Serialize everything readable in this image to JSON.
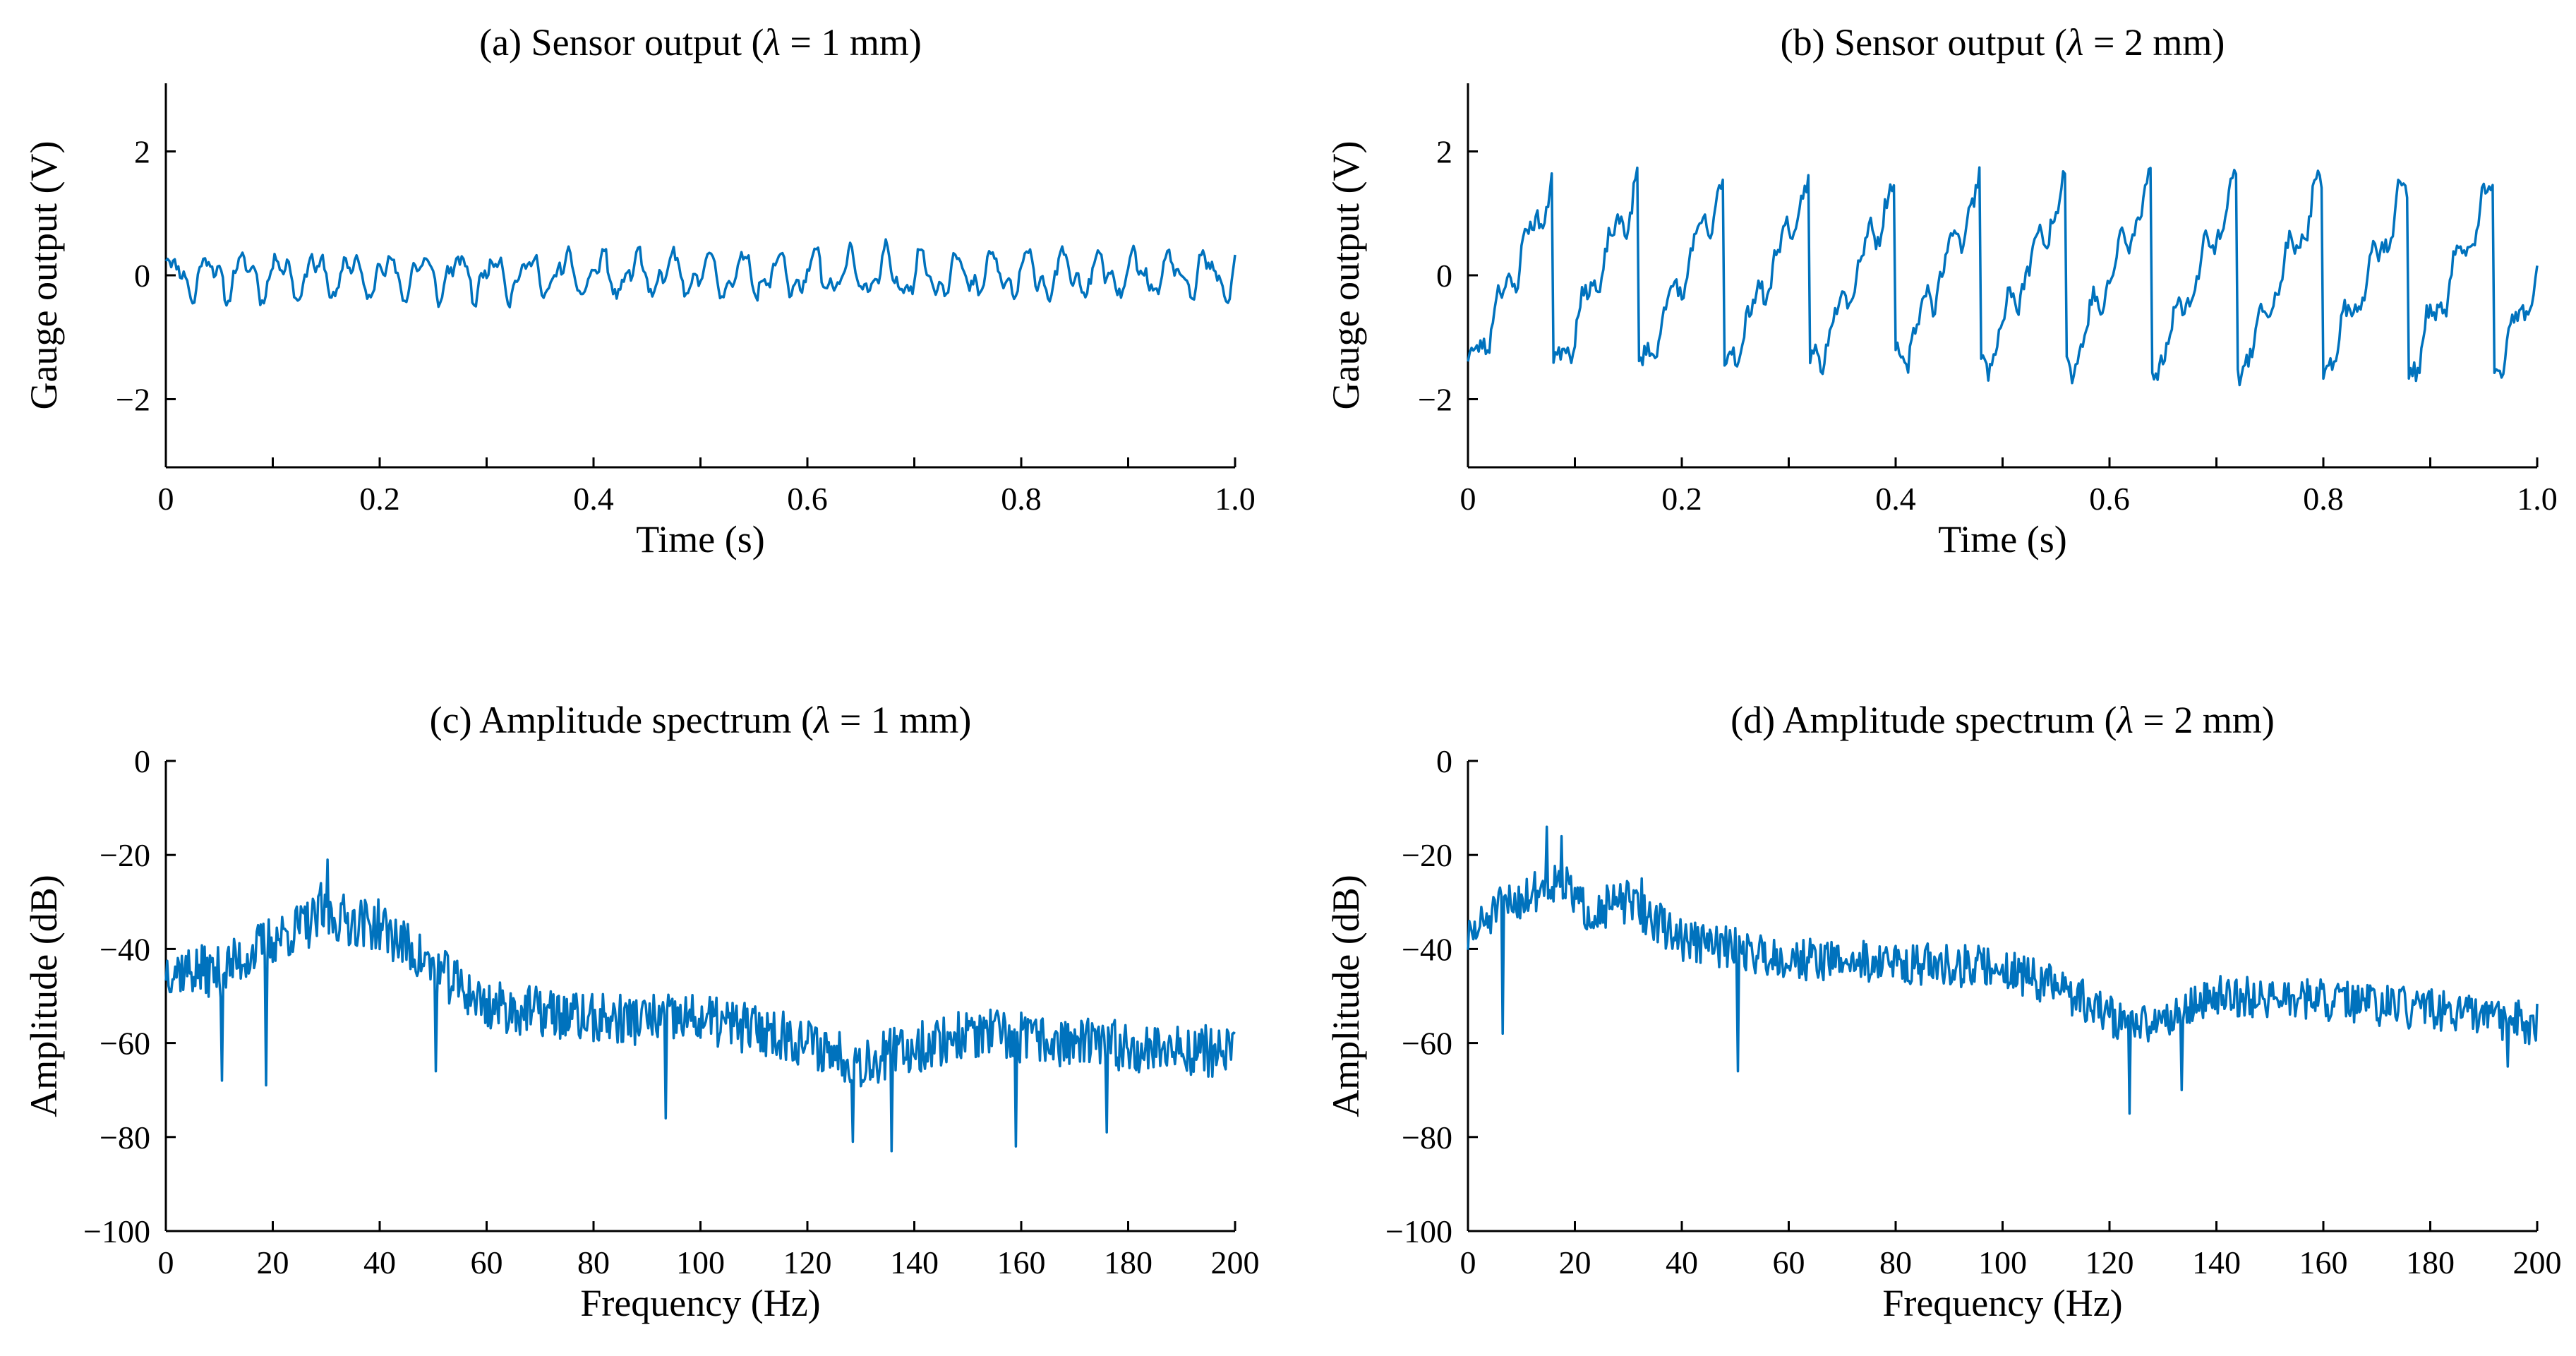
{
  "chart_data": [
    {
      "id": "a",
      "type": "line",
      "title_prefix": "(a) Sensor output (",
      "title_symbol": "λ",
      "title_suffix": " = 1 mm)",
      "xlabel": "Time (s)",
      "ylabel": "Gauge output (V)",
      "xlim": [
        0,
        1.0
      ],
      "ylim": [
        -3.1,
        3.1
      ],
      "xticks": [
        0,
        0.1,
        0.2,
        0.3,
        0.4,
        0.5,
        0.6,
        0.7,
        0.8,
        0.9,
        1.0
      ],
      "xtick_labels": [
        "0",
        "",
        "0.2",
        "",
        "0.4",
        "",
        "0.6",
        "",
        "0.8",
        "",
        "1.0"
      ],
      "yticks": [
        -2,
        0,
        2
      ],
      "ytick_labels": [
        "−2",
        "0",
        "2"
      ],
      "color": "#0072BD",
      "signal": {
        "kind": "time",
        "points": 600,
        "components": [
          {
            "amp": 0.28,
            "freq": 30,
            "phase": 0.3,
            "shape": "sine"
          },
          {
            "amp": 0.14,
            "freq": 61,
            "phase": 1.1,
            "shape": "sine"
          },
          {
            "amp": 0.08,
            "freq": 95,
            "phase": 2.1,
            "shape": "sine"
          }
        ],
        "offset": 0.0,
        "noise": 0.09,
        "seed": 11
      }
    },
    {
      "id": "b",
      "type": "line",
      "title_prefix": "(b) Sensor output (",
      "title_symbol": "λ",
      "title_suffix": " = 2 mm)",
      "xlabel": "Time (s)",
      "ylabel": "Gauge output (V)",
      "xlim": [
        0,
        1.0
      ],
      "ylim": [
        -3.1,
        3.1
      ],
      "xticks": [
        0,
        0.1,
        0.2,
        0.3,
        0.4,
        0.5,
        0.6,
        0.7,
        0.8,
        0.9,
        1.0
      ],
      "xtick_labels": [
        "0",
        "",
        "0.2",
        "",
        "0.4",
        "",
        "0.6",
        "",
        "0.8",
        "",
        "1.0"
      ],
      "yticks": [
        -2,
        0,
        2
      ],
      "ytick_labels": [
        "−2",
        "0",
        "2"
      ],
      "color": "#0072BD",
      "signal": {
        "kind": "time",
        "points": 600,
        "components": [
          {
            "amp": 1.7,
            "freq": 12.5,
            "phase": 0.0,
            "shape": "saw"
          },
          {
            "amp": 0.25,
            "freq": 38,
            "phase": 0.6,
            "shape": "sine"
          },
          {
            "amp": 0.12,
            "freq": 77,
            "phase": 1.4,
            "shape": "sine"
          }
        ],
        "offset": -0.05,
        "noise": 0.14,
        "seed": 23
      }
    },
    {
      "id": "c",
      "type": "line",
      "title_prefix": "(c) Amplitude spectrum (",
      "title_symbol": "λ",
      "title_suffix": " = 1 mm)",
      "xlabel": "Frequency (Hz)",
      "ylabel": "Amplitude (dB)",
      "xlim": [
        0,
        200
      ],
      "ylim": [
        -100,
        0
      ],
      "xticks": [
        0,
        20,
        40,
        60,
        80,
        100,
        120,
        140,
        160,
        180,
        200
      ],
      "xtick_labels": [
        "0",
        "20",
        "40",
        "60",
        "80",
        "100",
        "120",
        "140",
        "160",
        "180",
        "200"
      ],
      "yticks": [
        -100,
        -80,
        -60,
        -40,
        -20,
        0
      ],
      "ytick_labels": [
        "−100",
        "−80",
        "−60",
        "−40",
        "−20",
        "0"
      ],
      "color": "#0072BD",
      "signal": {
        "kind": "spectrum",
        "points": 800,
        "envelope_f": [
          0,
          10,
          20,
          30,
          40,
          50,
          60,
          80,
          100,
          115,
          130,
          150,
          170,
          200
        ],
        "envelope_db": [
          -44,
          -45,
          -38,
          -33,
          -35,
          -44,
          -52,
          -55,
          -55,
          -58,
          -64,
          -58,
          -60,
          -62
        ],
        "noise": 5.5,
        "dips": [
          {
            "f": 10.5,
            "db": -68
          },
          {
            "f": 18.8,
            "db": -69
          },
          {
            "f": 50.5,
            "db": -66
          },
          {
            "f": 93.5,
            "db": -76
          },
          {
            "f": 128.5,
            "db": -81
          },
          {
            "f": 135.8,
            "db": -83
          },
          {
            "f": 158.9,
            "db": -82
          },
          {
            "f": 176,
            "db": -79
          }
        ],
        "peaks": [
          {
            "f": 30.2,
            "db": -21
          },
          {
            "f": 29.0,
            "db": -26
          }
        ],
        "seed": 37
      }
    },
    {
      "id": "d",
      "type": "line",
      "title_prefix": "(d) Amplitude spectrum (",
      "title_symbol": "λ",
      "title_suffix": " = 2 mm)",
      "xlabel": "Frequency (Hz)",
      "ylabel": "Amplitude (dB)",
      "xlim": [
        0,
        200
      ],
      "ylim": [
        -100,
        0
      ],
      "xticks": [
        0,
        20,
        40,
        60,
        80,
        100,
        120,
        140,
        160,
        180,
        200
      ],
      "xtick_labels": [
        "0",
        "20",
        "40",
        "60",
        "80",
        "100",
        "120",
        "140",
        "160",
        "180",
        "200"
      ],
      "yticks": [
        -100,
        -80,
        -60,
        -40,
        -20,
        0
      ],
      "ytick_labels": [
        "−100",
        "−80",
        "−60",
        "−40",
        "−20",
        "0"
      ],
      "color": "#0072BD",
      "signal": {
        "kind": "spectrum",
        "points": 800,
        "envelope_f": [
          0,
          5,
          12,
          17,
          22,
          30,
          40,
          60,
          80,
          100,
          110,
          125,
          140,
          160,
          180,
          200
        ],
        "envelope_db": [
          -38,
          -32,
          -28,
          -25,
          -32,
          -30,
          -38,
          -42,
          -43,
          -44,
          -48,
          -57,
          -50,
          -51,
          -53,
          -56
        ],
        "noise": 4.5,
        "dips": [
          {
            "f": 6.5,
            "db": -58
          },
          {
            "f": 50.5,
            "db": -66
          },
          {
            "f": 123.8,
            "db": -75
          },
          {
            "f": 133.5,
            "db": -70
          },
          {
            "f": 194.5,
            "db": -65
          }
        ],
        "peaks": [
          {
            "f": 14.8,
            "db": -14
          },
          {
            "f": 17.5,
            "db": -16
          },
          {
            "f": 32.5,
            "db": -25
          }
        ],
        "seed": 51
      }
    }
  ]
}
